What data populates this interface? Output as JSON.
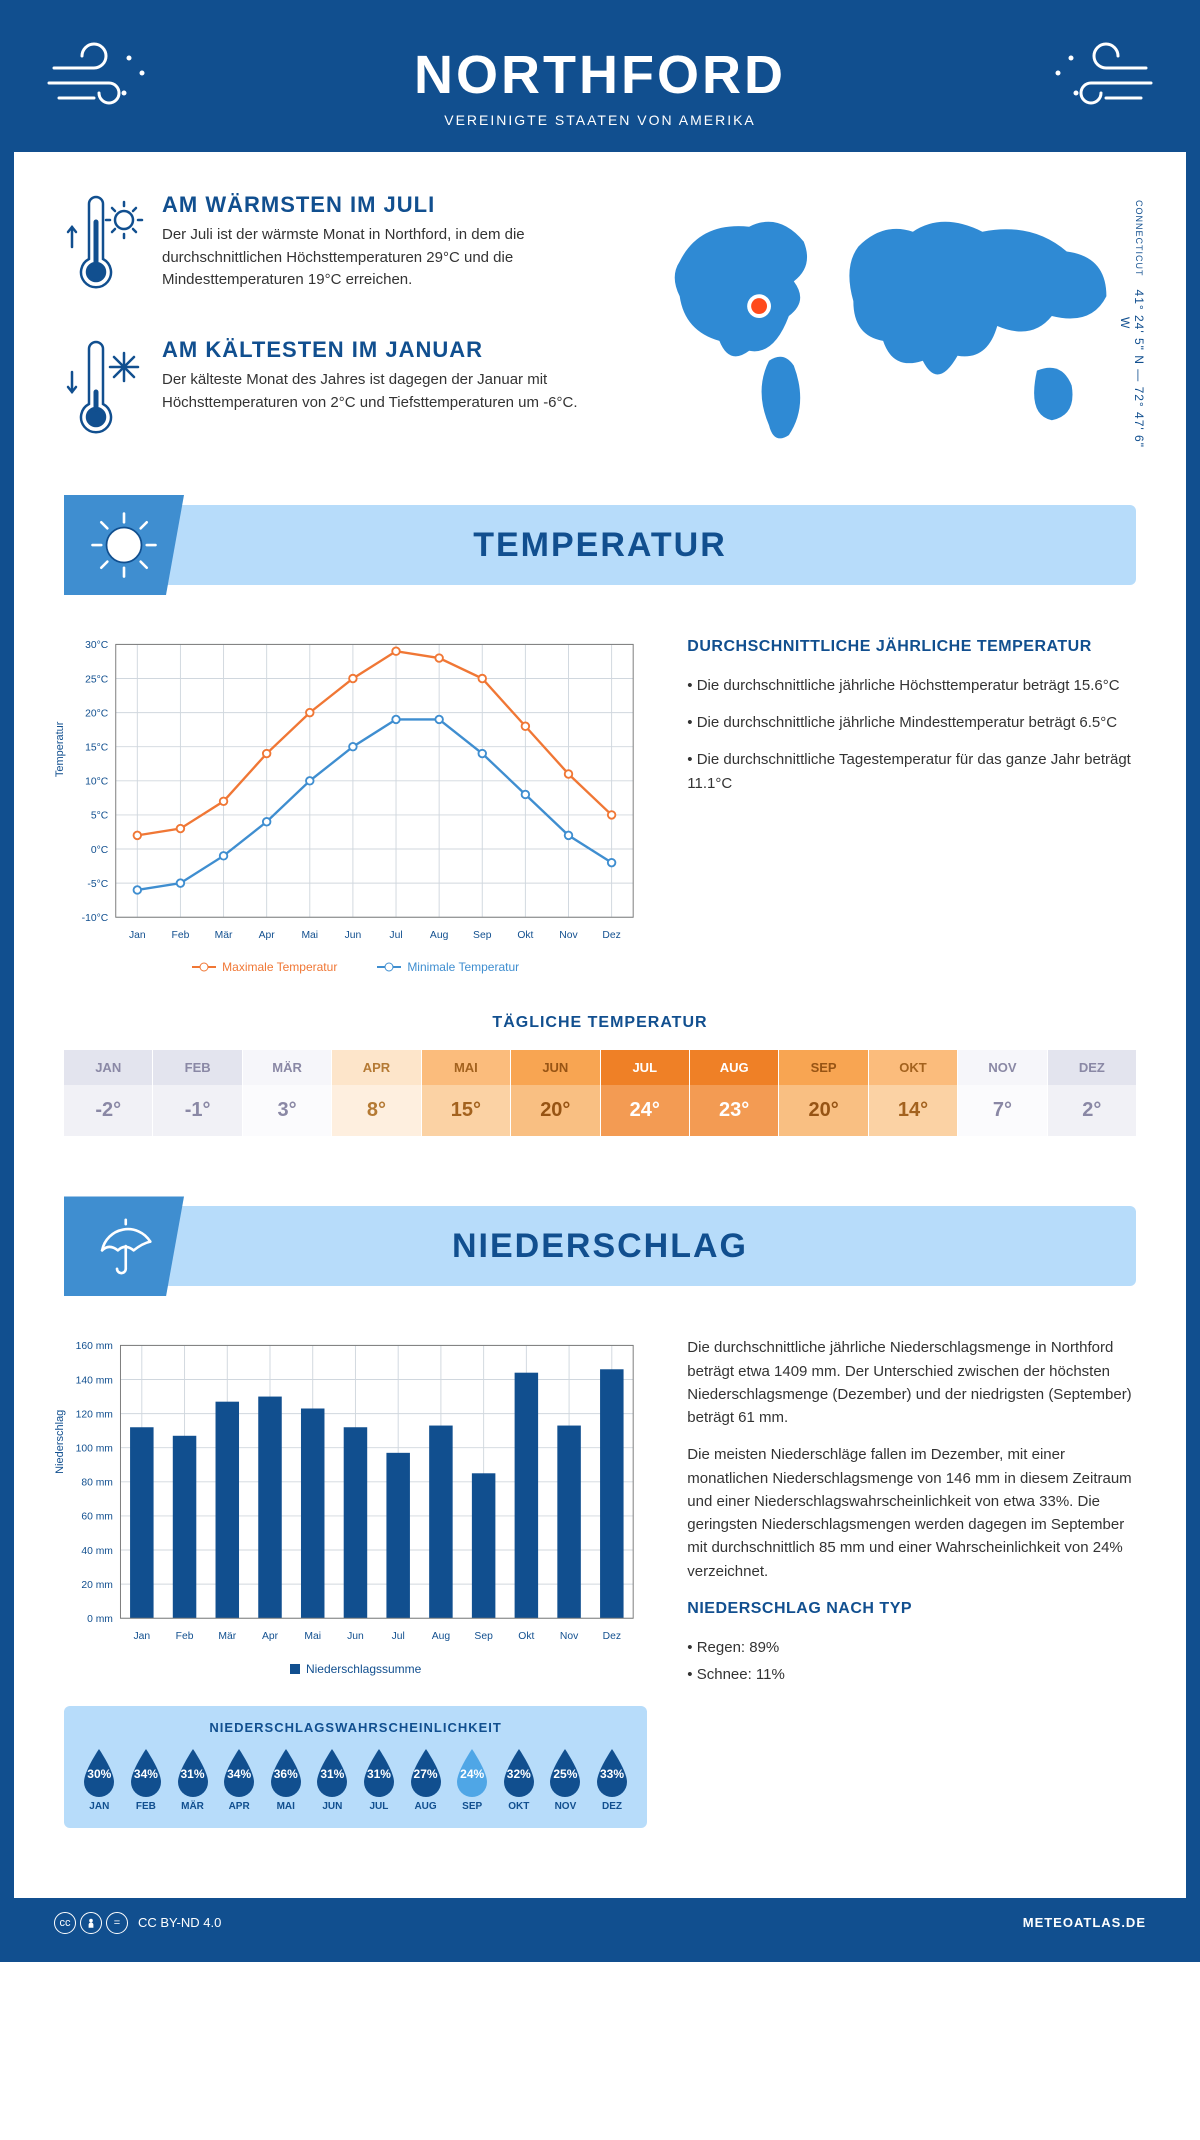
{
  "header": {
    "city": "NORTHFORD",
    "country": "VEREINIGTE STAATEN VON AMERIKA"
  },
  "coords": {
    "lat": "41° 24' 5\" N — 72° 47' 6\" W",
    "region": "CONNECTICUT"
  },
  "warm_block": {
    "title": "AM WÄRMSTEN IM JULI",
    "text": "Der Juli ist der wärmste Monat in Northford, in dem die durchschnittlichen Höchsttemperaturen 29°C und die Mindesttemperaturen 19°C erreichen."
  },
  "cold_block": {
    "title": "AM KÄLTESTEN IM JANUAR",
    "text": "Der kälteste Monat des Jahres ist dagegen der Januar mit Höchsttemperaturen von 2°C und Tiefsttemperaturen um -6°C."
  },
  "sections": {
    "temp_title": "TEMPERATUR",
    "precip_title": "NIEDERSCHLAG"
  },
  "temp_chart": {
    "type": "line",
    "months": [
      "Jan",
      "Feb",
      "Mär",
      "Apr",
      "Mai",
      "Jun",
      "Jul",
      "Aug",
      "Sep",
      "Okt",
      "Nov",
      "Dez"
    ],
    "max_series": [
      2,
      3,
      7,
      14,
      20,
      25,
      29,
      28,
      25,
      18,
      11,
      5
    ],
    "min_series": [
      -6,
      -5,
      -1,
      4,
      10,
      15,
      19,
      19,
      14,
      8,
      2,
      -2
    ],
    "max_color": "#f07735",
    "min_color": "#3f8ed0",
    "ylim": [
      -10,
      30
    ],
    "ytick_step": 5,
    "y_suffix": "°C",
    "ylabel": "Temperatur",
    "grid_color": "#d0d7de",
    "legend_max": "Maximale Temperatur",
    "legend_min": "Minimale Temperatur"
  },
  "temp_text": {
    "heading": "DURCHSCHNITTLICHE JÄHRLICHE TEMPERATUR",
    "b1": "• Die durchschnittliche jährliche Höchsttemperatur beträgt 15.6°C",
    "b2": "• Die durchschnittliche jährliche Mindesttemperatur beträgt 6.5°C",
    "b3": "• Die durchschnittliche Tagestemperatur für das ganze Jahr beträgt 11.1°C"
  },
  "daily_temp": {
    "heading": "TÄGLICHE TEMPERATUR",
    "months": [
      "JAN",
      "FEB",
      "MÄR",
      "APR",
      "MAI",
      "JUN",
      "JUL",
      "AUG",
      "SEP",
      "OKT",
      "NOV",
      "DEZ"
    ],
    "values": [
      "-2°",
      "-1°",
      "3°",
      "8°",
      "15°",
      "20°",
      "24°",
      "23°",
      "20°",
      "14°",
      "7°",
      "2°"
    ],
    "head_colors": [
      "#e3e4ee",
      "#e3e4ee",
      "#f6f6fa",
      "#fde5ca",
      "#fbbc7c",
      "#f8a552",
      "#ef8026",
      "#ef8026",
      "#f8a552",
      "#fbbc7c",
      "#f6f6fa",
      "#e3e4ee"
    ],
    "val_colors": [
      "#f1f1f6",
      "#f1f1f6",
      "#fbfbfd",
      "#feefdf",
      "#fbd2a4",
      "#f9bf82",
      "#f39b53",
      "#f39b53",
      "#f9bf82",
      "#fbd2a4",
      "#fbfbfd",
      "#f1f1f6"
    ],
    "text_colors": [
      "#8a88a5",
      "#8a88a5",
      "#8a88a5",
      "#b57a34",
      "#a3621e",
      "#975414",
      "#ffffff",
      "#ffffff",
      "#975414",
      "#a3621e",
      "#8a88a5",
      "#8a88a5"
    ]
  },
  "precip_chart": {
    "type": "bar",
    "months": [
      "Jan",
      "Feb",
      "Mär",
      "Apr",
      "Mai",
      "Jun",
      "Jul",
      "Aug",
      "Sep",
      "Okt",
      "Nov",
      "Dez"
    ],
    "values": [
      112,
      107,
      127,
      130,
      123,
      112,
      97,
      113,
      85,
      144,
      113,
      146
    ],
    "bar_color": "#114f8f",
    "ylim": [
      0,
      160
    ],
    "ytick_step": 20,
    "y_suffix": " mm",
    "ylabel": "Niederschlag",
    "grid_color": "#d0d7de",
    "legend": "Niederschlagssumme"
  },
  "precip_text": {
    "p1": "Die durchschnittliche jährliche Niederschlagsmenge in Northford beträgt etwa 1409 mm. Der Unterschied zwischen der höchsten Niederschlagsmenge (Dezember) und der niedrigsten (September) beträgt 61 mm.",
    "p2": "Die meisten Niederschläge fallen im Dezember, mit einer monatlichen Niederschlagsmenge von 146 mm in diesem Zeitraum und einer Niederschlagswahrscheinlichkeit von etwa 33%. Die geringsten Niederschlagsmengen werden dagegen im September mit durchschnittlich 85 mm und einer Wahrscheinlichkeit von 24% verzeichnet.",
    "heading": "NIEDERSCHLAG NACH TYP",
    "b1": "• Regen: 89%",
    "b2": "• Schnee: 11%"
  },
  "precip_prob": {
    "heading": "NIEDERSCHLAGSWAHRSCHEINLICHKEIT",
    "months": [
      "JAN",
      "FEB",
      "MÄR",
      "APR",
      "MAI",
      "JUN",
      "JUL",
      "AUG",
      "SEP",
      "OKT",
      "NOV",
      "DEZ"
    ],
    "values": [
      "30%",
      "34%",
      "31%",
      "34%",
      "36%",
      "31%",
      "31%",
      "27%",
      "24%",
      "32%",
      "25%",
      "33%"
    ],
    "drop_color": "#114f8f",
    "min_color": "#4fa6e6",
    "min_index": 8
  },
  "footer": {
    "license": "CC BY-ND 4.0",
    "brand": "METEOATLAS.DE"
  }
}
